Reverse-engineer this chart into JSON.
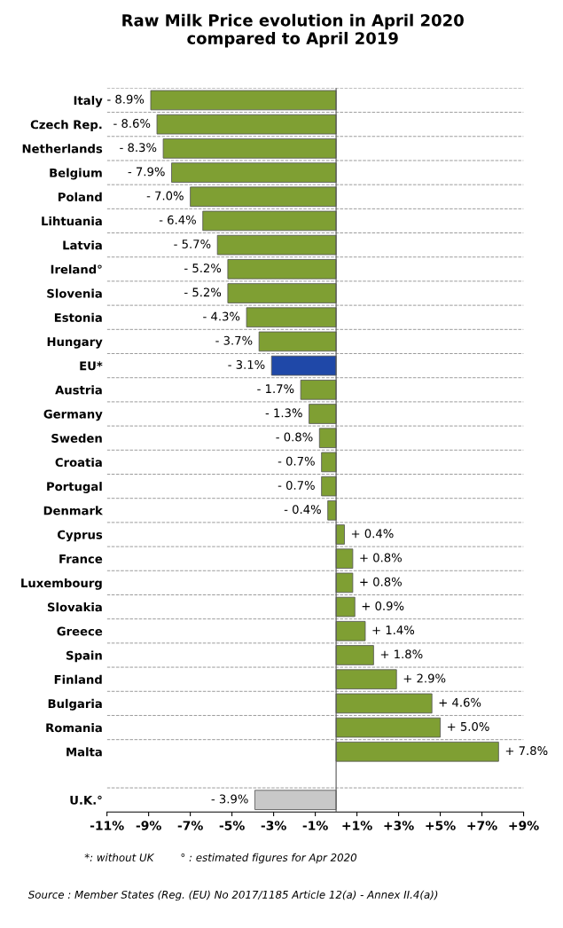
{
  "chart_data": {
    "type": "bar",
    "orientation": "horizontal",
    "title": "Raw Milk Price evolution in April 2020\ncompared to April 2019",
    "categories": [
      "Italy",
      "Czech Rep.",
      "Netherlands",
      "Belgium",
      "Poland",
      "Lihtuania",
      "Latvia",
      "Ireland°",
      "Slovenia",
      "Estonia",
      "Hungary",
      "EU*",
      "Austria",
      "Germany",
      "Sweden",
      "Croatia",
      "Portugal",
      "Denmark",
      "Cyprus",
      "France",
      "Luxembourg",
      "Slovakia",
      "Greece",
      "Spain",
      "Finland",
      "Bulgaria",
      "Romania",
      "Malta",
      null,
      "U.K.°"
    ],
    "values": [
      -8.9,
      -8.6,
      -8.3,
      -7.9,
      -7.0,
      -6.4,
      -5.7,
      -5.2,
      -5.2,
      -4.3,
      -3.7,
      -3.1,
      -1.7,
      -1.3,
      -0.8,
      -0.7,
      -0.7,
      -0.4,
      0.4,
      0.8,
      0.8,
      0.9,
      1.4,
      1.8,
      2.9,
      4.6,
      5.0,
      7.8,
      null,
      -3.9
    ],
    "value_labels": [
      "- 8.9%",
      "- 8.6%",
      "- 8.3%",
      "- 7.9%",
      "- 7.0%",
      "- 6.4%",
      "- 5.7%",
      "- 5.2%",
      "- 5.2%",
      "- 4.3%",
      "- 3.7%",
      "- 3.1%",
      "- 1.7%",
      "- 1.3%",
      "- 0.8%",
      "- 0.7%",
      "- 0.7%",
      "- 0.4%",
      "+ 0.4%",
      "+ 0.8%",
      "+ 0.8%",
      "+ 0.9%",
      "+ 1.4%",
      "+ 1.8%",
      "+ 2.9%",
      "+ 4.6%",
      "+ 5.0%",
      "+ 7.8%",
      null,
      "- 3.9%"
    ],
    "colors": [
      "#7f9f33",
      "#7f9f33",
      "#7f9f33",
      "#7f9f33",
      "#7f9f33",
      "#7f9f33",
      "#7f9f33",
      "#7f9f33",
      "#7f9f33",
      "#7f9f33",
      "#7f9f33",
      "#1f48a8",
      "#7f9f33",
      "#7f9f33",
      "#7f9f33",
      "#7f9f33",
      "#7f9f33",
      "#7f9f33",
      "#7f9f33",
      "#7f9f33",
      "#7f9f33",
      "#7f9f33",
      "#7f9f33",
      "#7f9f33",
      "#7f9f33",
      "#7f9f33",
      "#7f9f33",
      "#7f9f33",
      null,
      "#c8c8c8"
    ],
    "xlim": [
      -11,
      9
    ],
    "xticks": [
      {
        "value": -11,
        "label": "-11%"
      },
      {
        "value": -9,
        "label": "-9%"
      },
      {
        "value": -7,
        "label": "-7%"
      },
      {
        "value": -5,
        "label": "-5%"
      },
      {
        "value": -3,
        "label": "-3%"
      },
      {
        "value": -1,
        "label": "-1%"
      },
      {
        "value": 1,
        "label": "+1%"
      },
      {
        "value": 3,
        "label": "+3%"
      },
      {
        "value": 5,
        "label": "+5%"
      },
      {
        "value": 7,
        "label": "+7%"
      },
      {
        "value": 9,
        "label": "+9%"
      }
    ],
    "grid": "y",
    "annotations": [
      "*: without UK        ° : estimated figures for Apr 2020",
      "Source : Member States (Reg. (EU) No 2017/1185 Article 12(a) - Annex II.4(a))"
    ]
  }
}
